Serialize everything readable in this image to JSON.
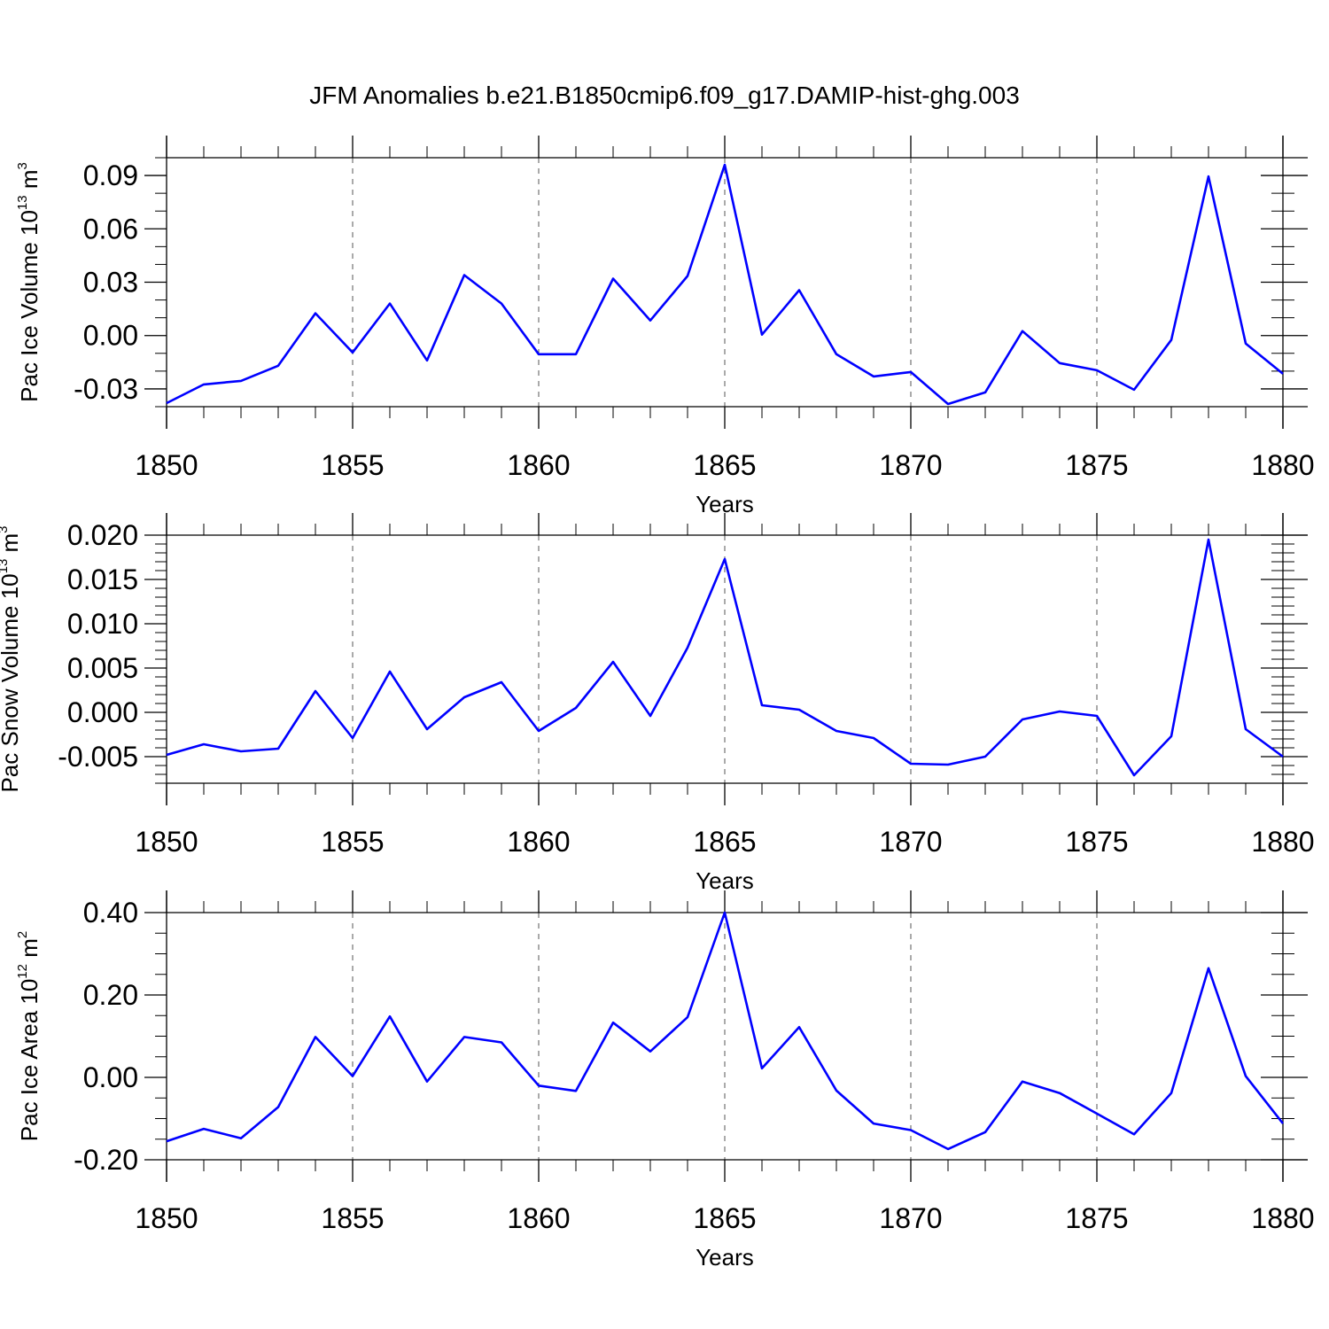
{
  "title": "JFM Anomalies b.e21.B1850cmip6.f09_g17.DAMIP-hist-ghg.003",
  "line_color": "#0000ff",
  "chart_data": [
    {
      "type": "line",
      "ylabel_main": "Pac Ice Volume 10",
      "ylabel_exp": "13",
      "ylabel_unit": " m",
      "ylabel_unit_exp": "3",
      "xlabel": "Years",
      "xlim": [
        1850,
        1880
      ],
      "ylim": [
        -0.04,
        0.1
      ],
      "x_ticks": [
        1850,
        1855,
        1860,
        1865,
        1870,
        1875,
        1880
      ],
      "x_tick_labels": [
        "1850",
        "1855",
        "1860",
        "1865",
        "1870",
        "1875",
        "1880"
      ],
      "y_ticks": [
        -0.03,
        0.0,
        0.03,
        0.06,
        0.09
      ],
      "y_tick_labels": [
        "-0.03",
        "0.00",
        "0.03",
        "0.06",
        "0.09"
      ],
      "y_minor_step": 0.01,
      "grid": "vertical dashed at major x ticks",
      "x": [
        1850,
        1851,
        1852,
        1853,
        1854,
        1855,
        1856,
        1857,
        1858,
        1859,
        1860,
        1861,
        1862,
        1863,
        1864,
        1865,
        1866,
        1867,
        1868,
        1869,
        1870,
        1871,
        1872,
        1873,
        1874,
        1875,
        1876,
        1877,
        1878,
        1879,
        1880
      ],
      "values": [
        -0.038,
        -0.0275,
        -0.0255,
        -0.017,
        0.0125,
        -0.0095,
        0.018,
        -0.014,
        0.034,
        0.018,
        -0.0105,
        -0.0105,
        0.032,
        0.0085,
        0.0335,
        0.096,
        0.0005,
        0.0255,
        -0.0105,
        -0.023,
        -0.0205,
        -0.0385,
        -0.032,
        0.0025,
        -0.0155,
        -0.0195,
        -0.0305,
        -0.0025,
        0.0895,
        -0.0045,
        -0.0215
      ]
    },
    {
      "type": "line",
      "ylabel_main": "Pac Snow Volume 10",
      "ylabel_exp": "13",
      "ylabel_unit": " m",
      "ylabel_unit_exp": "3",
      "xlabel": "Years",
      "xlim": [
        1850,
        1880
      ],
      "ylim": [
        -0.008,
        0.02
      ],
      "x_ticks": [
        1850,
        1855,
        1860,
        1865,
        1870,
        1875,
        1880
      ],
      "x_tick_labels": [
        "1850",
        "1855",
        "1860",
        "1865",
        "1870",
        "1875",
        "1880"
      ],
      "y_ticks": [
        -0.005,
        0.0,
        0.005,
        0.01,
        0.015,
        0.02
      ],
      "y_tick_labels": [
        "-0.005",
        "0.000",
        "0.005",
        "0.010",
        "0.015",
        "0.020"
      ],
      "y_minor_step": 0.001,
      "grid": "vertical dashed at major x ticks",
      "x": [
        1850,
        1851,
        1852,
        1853,
        1854,
        1855,
        1856,
        1857,
        1858,
        1859,
        1860,
        1861,
        1862,
        1863,
        1864,
        1865,
        1866,
        1867,
        1868,
        1869,
        1870,
        1871,
        1872,
        1873,
        1874,
        1875,
        1876,
        1877,
        1878,
        1879,
        1880
      ],
      "values": [
        -0.0048,
        -0.0036,
        -0.0044,
        -0.0041,
        0.0024,
        -0.0029,
        0.0046,
        -0.0019,
        0.0017,
        0.0034,
        -0.0021,
        0.0005,
        0.0057,
        -0.0004,
        0.0073,
        0.0173,
        0.0008,
        0.0003,
        -0.0021,
        -0.0029,
        -0.0058,
        -0.0059,
        -0.005,
        -0.0008,
        0.0001,
        -0.0004,
        -0.0071,
        -0.0027,
        0.0195,
        -0.0019,
        -0.005
      ]
    },
    {
      "type": "line",
      "ylabel_main": "Pac Ice Area 10",
      "ylabel_exp": "12",
      "ylabel_unit": " m",
      "ylabel_unit_exp": "2",
      "xlabel": "Years",
      "xlim": [
        1850,
        1880
      ],
      "ylim": [
        -0.2,
        0.4
      ],
      "x_ticks": [
        1850,
        1855,
        1860,
        1865,
        1870,
        1875,
        1880
      ],
      "x_tick_labels": [
        "1850",
        "1855",
        "1860",
        "1865",
        "1870",
        "1875",
        "1880"
      ],
      "y_ticks": [
        -0.2,
        0.0,
        0.2,
        0.4
      ],
      "y_tick_labels": [
        "-0.20",
        "0.00",
        "0.20",
        "0.40"
      ],
      "y_minor_step": 0.05,
      "grid": "vertical dashed at major x ticks",
      "x": [
        1850,
        1851,
        1852,
        1853,
        1854,
        1855,
        1856,
        1857,
        1858,
        1859,
        1860,
        1861,
        1862,
        1863,
        1864,
        1865,
        1866,
        1867,
        1868,
        1869,
        1870,
        1871,
        1872,
        1873,
        1874,
        1875,
        1876,
        1877,
        1878,
        1879,
        1880
      ],
      "values": [
        -0.155,
        -0.125,
        -0.148,
        -0.072,
        0.098,
        0.003,
        0.148,
        -0.01,
        0.098,
        0.085,
        -0.02,
        -0.033,
        0.133,
        0.063,
        0.146,
        0.4,
        0.022,
        0.122,
        -0.032,
        -0.112,
        -0.128,
        -0.174,
        -0.133,
        -0.01,
        -0.038,
        -0.088,
        -0.138,
        -0.038,
        0.265,
        0.003,
        -0.112
      ]
    }
  ]
}
